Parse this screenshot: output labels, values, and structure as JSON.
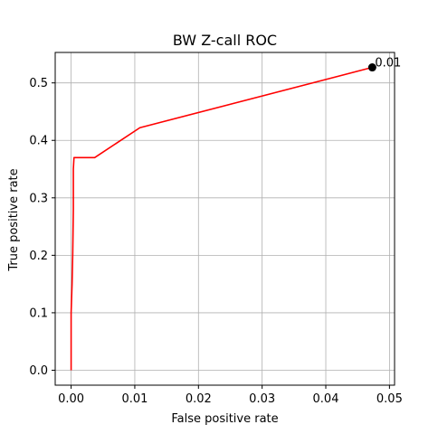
{
  "chart_data": {
    "type": "line",
    "title": "BW Z-call ROC",
    "xlabel": "False positive rate",
    "ylabel": "True positive rate",
    "xlim": [
      -0.0025,
      0.0508
    ],
    "ylim": [
      -0.026,
      0.553
    ],
    "x_ticks": [
      0.0,
      0.01,
      0.02,
      0.03,
      0.04,
      0.05
    ],
    "x_tick_labels": [
      "0.00",
      "0.01",
      "0.02",
      "0.03",
      "0.04",
      "0.05"
    ],
    "y_ticks": [
      0.0,
      0.1,
      0.2,
      0.3,
      0.4,
      0.5
    ],
    "y_tick_labels": [
      "0.0",
      "0.1",
      "0.2",
      "0.3",
      "0.4",
      "0.5"
    ],
    "grid": true,
    "series": [
      {
        "color": "#ff0000",
        "x": [
          0.0,
          0.0,
          0.0,
          0.00015,
          0.00025,
          0.00035,
          0.00035,
          0.00045,
          0.0037,
          0.0108,
          0.0473,
          0.0477
        ],
        "y": [
          0.0,
          0.1,
          0.1,
          0.15,
          0.2,
          0.28,
          0.35,
          0.37,
          0.37,
          0.422,
          0.527,
          0.53
        ]
      }
    ],
    "annotations": [
      {
        "x": 0.0473,
        "y": 0.527,
        "label": "0.01",
        "marker_color": "#000000"
      }
    ]
  }
}
